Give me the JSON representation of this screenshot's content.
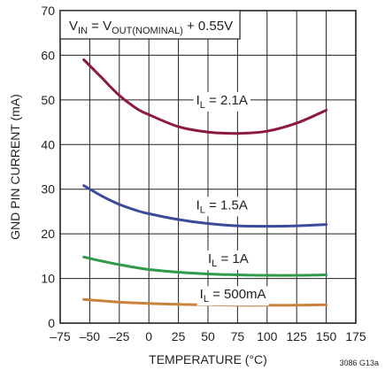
{
  "chart_data": {
    "type": "line",
    "xlabel": "TEMPERATURE (°C)",
    "ylabel": "GND PIN CURRENT (mA)",
    "xlim": [
      -75,
      175
    ],
    "ylim": [
      0,
      70
    ],
    "xticks": [
      -75,
      -50,
      -25,
      0,
      25,
      50,
      75,
      100,
      125,
      150,
      175
    ],
    "xtick_labels": [
      "–75",
      "–50",
      "–25",
      "0",
      "25",
      "50",
      "75",
      "100",
      "125",
      "150",
      "175"
    ],
    "yticks": [
      0,
      10,
      20,
      30,
      40,
      50,
      60,
      70
    ],
    "ytick_labels": [
      "0",
      "10",
      "20",
      "30",
      "40",
      "50",
      "60",
      "70"
    ],
    "grid": true,
    "condition": {
      "v1": "V",
      "s1": "IN",
      "v2": " = V",
      "s2": "OUT(NOMINAL)",
      "v3": " + 0.55V"
    },
    "note": "3086 G13a",
    "series": [
      {
        "name": "I_L = 2.1A",
        "label_main": "I",
        "label_sub": "L",
        "label_rest": " = 2.1A",
        "label_at": [
          40,
          50
        ],
        "color": "#8b1a3c",
        "x": [
          -55,
          -40,
          -25,
          -10,
          0,
          25,
          50,
          75,
          100,
          125,
          150
        ],
        "y": [
          59,
          55,
          51,
          48,
          46.7,
          44,
          42.8,
          42.5,
          43,
          44.8,
          47.7
        ]
      },
      {
        "name": "I_L = 1.5A",
        "label_main": "I",
        "label_sub": "L",
        "label_rest": " = 1.5A",
        "label_at": [
          40,
          26.5
        ],
        "color": "#3b4a9a",
        "x": [
          -55,
          -40,
          -25,
          -10,
          0,
          25,
          50,
          75,
          100,
          125,
          150
        ],
        "y": [
          30.8,
          28.5,
          26.6,
          25.2,
          24.5,
          23.2,
          22.3,
          21.8,
          21.7,
          21.8,
          22.1
        ]
      },
      {
        "name": "I_L = 1A",
        "label_main": "I",
        "label_sub": "L",
        "label_rest": " = 1A",
        "label_at": [
          50,
          14.5
        ],
        "color": "#2f9a4a",
        "x": [
          -55,
          -40,
          -25,
          -10,
          0,
          25,
          50,
          75,
          100,
          125,
          150
        ],
        "y": [
          14.8,
          13.9,
          13.1,
          12.4,
          12,
          11.4,
          11,
          10.8,
          10.7,
          10.7,
          10.8
        ]
      },
      {
        "name": "I_L = 500mA",
        "label_main": "I",
        "label_sub": "L",
        "label_rest": " = 500mA",
        "label_at": [
          43,
          6.5
        ],
        "color": "#c8823d",
        "x": [
          -55,
          -40,
          -25,
          -10,
          0,
          25,
          50,
          75,
          100,
          125,
          150
        ],
        "y": [
          5.3,
          5,
          4.7,
          4.5,
          4.4,
          4.2,
          4.1,
          4.0,
          4.0,
          4.0,
          4.1
        ]
      }
    ]
  }
}
